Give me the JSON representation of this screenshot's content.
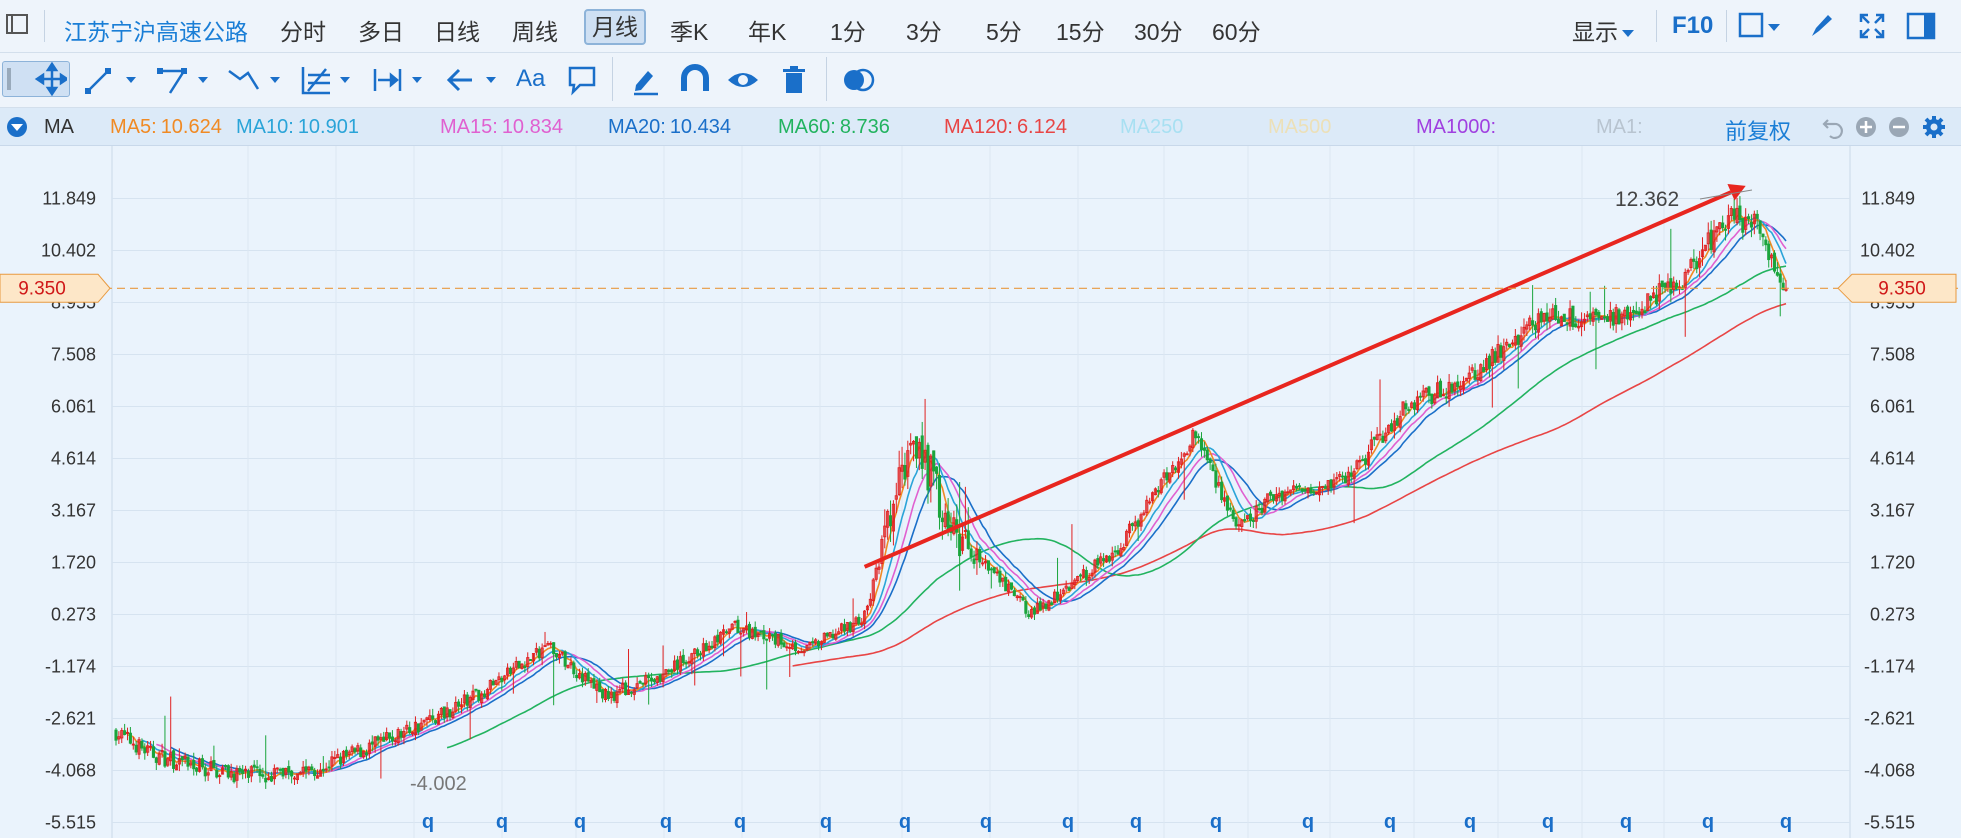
{
  "header": {
    "stock_name": "江苏宁沪高速公路",
    "periods": [
      "分时",
      "多日",
      "日线",
      "周线",
      "月线",
      "季K",
      "年K",
      "1分",
      "3分",
      "5分",
      "15分",
      "30分",
      "60分"
    ],
    "active_period": "月线",
    "display_label": "显示",
    "f10_label": "F10"
  },
  "toolbar": {
    "icons": [
      "move-icon",
      "line-icon",
      "polyline-icon",
      "wave-icon",
      "fib-icon",
      "measure-icon",
      "arrow-icon",
      "text-icon",
      "comment-icon",
      "pen-icon",
      "magnet-icon",
      "eye-icon",
      "trash-icon",
      "overlay-icon"
    ],
    "text_tool_label": "Aa"
  },
  "ma_bar": {
    "label": "MA",
    "adjust_label": "前复权",
    "items": [
      {
        "name": "MA5:",
        "value": "10.624",
        "color": "#f08a24"
      },
      {
        "name": "MA10:",
        "value": "10.901",
        "color": "#2aa4d8"
      },
      {
        "name": "MA15:",
        "value": "10.834",
        "color": "#e060d0"
      },
      {
        "name": "MA20:",
        "value": "10.434",
        "color": "#1a6fc9"
      },
      {
        "name": "MA60:",
        "value": "8.736",
        "color": "#22b35f"
      },
      {
        "name": "MA120:",
        "value": "6.124",
        "color": "#e84545"
      },
      {
        "name": "MA250",
        "value": "",
        "color": "#a8e0f2"
      },
      {
        "name": "MA500",
        "value": "",
        "color": "#ece0b8"
      },
      {
        "name": "MA1000:",
        "value": "",
        "color": "#a040e0"
      },
      {
        "name": "MA1:",
        "value": "",
        "color": "#b8c4d0"
      }
    ]
  },
  "chart_data": {
    "type": "candlestick",
    "ylim": [
      -5.515,
      13.3
    ],
    "y_ticks": [
      "11.849",
      "10.402",
      "8.955",
      "7.508",
      "6.061",
      "4.614",
      "3.167",
      "1.720",
      "0.273",
      "-1.174",
      "-2.621",
      "-4.068",
      "-5.515"
    ],
    "current_price": "9.350",
    "max_label": "12.362",
    "min_label": "-4.002",
    "x_marker": "q",
    "x_marker_count": 18,
    "colors": {
      "up": "#e02020",
      "down": "#1aa53c",
      "ma5": "#f08a24",
      "ma10": "#2aa4d8",
      "ma15": "#e060d0",
      "ma20": "#1a6fc9",
      "ma60": "#22b35f",
      "ma120": "#e84545",
      "arrow": "#e8261f",
      "price_line": "#e89a40"
    },
    "trend_anchors": [
      {
        "i": 0,
        "y": -3.0
      },
      {
        "i": 12,
        "y": -3.6
      },
      {
        "i": 25,
        "y": -3.9
      },
      {
        "i": 45,
        "y": -4.2
      },
      {
        "i": 70,
        "y": -4.0
      },
      {
        "i": 95,
        "y": -3.2
      },
      {
        "i": 125,
        "y": -2.0
      },
      {
        "i": 150,
        "y": -0.6
      },
      {
        "i": 170,
        "y": -2.0
      },
      {
        "i": 190,
        "y": -1.4
      },
      {
        "i": 215,
        "y": -0.1
      },
      {
        "i": 240,
        "y": -0.7
      },
      {
        "i": 260,
        "y": 0.2
      },
      {
        "i": 277,
        "y": 5.4
      },
      {
        "i": 290,
        "y": 2.6
      },
      {
        "i": 318,
        "y": 0.3
      },
      {
        "i": 348,
        "y": 2.1
      },
      {
        "i": 375,
        "y": 5.3
      },
      {
        "i": 390,
        "y": 2.6
      },
      {
        "i": 402,
        "y": 3.6
      },
      {
        "i": 428,
        "y": 4.1
      },
      {
        "i": 448,
        "y": 6.1
      },
      {
        "i": 470,
        "y": 6.8
      },
      {
        "i": 495,
        "y": 8.6
      },
      {
        "i": 518,
        "y": 8.5
      },
      {
        "i": 542,
        "y": 9.4
      },
      {
        "i": 560,
        "y": 11.4
      },
      {
        "i": 570,
        "y": 11.1
      },
      {
        "i": 580,
        "y": 9.35
      }
    ],
    "arrow": {
      "from": [
        260,
        1.6
      ],
      "to": [
        566,
        12.2
      ]
    }
  }
}
